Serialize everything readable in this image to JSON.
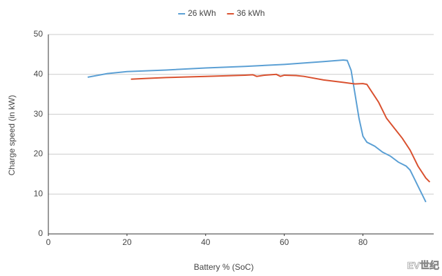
{
  "chart_data": {
    "type": "line",
    "x_label": "Battery % (SoC)",
    "y_label": "Charge speed (in kW)",
    "xlim": [
      0,
      98
    ],
    "xticks": [
      0,
      20,
      40,
      60,
      80
    ],
    "ylim": [
      0,
      50
    ],
    "yticks": [
      0,
      10,
      20,
      30,
      40,
      50
    ],
    "grid": true,
    "legend": "top",
    "series": [
      {
        "name": "26 kWh",
        "color": "#5a9fd4",
        "x": [
          10,
          15,
          20,
          30,
          40,
          50,
          60,
          70,
          75,
          76,
          77,
          78,
          79,
          80,
          81,
          83,
          85,
          87,
          89,
          91,
          92,
          93,
          94,
          95,
          96
        ],
        "values": [
          39.3,
          40.2,
          40.7,
          41.1,
          41.6,
          42.0,
          42.5,
          43.2,
          43.6,
          43.5,
          41,
          35,
          29,
          24.5,
          23,
          22,
          20.5,
          19.5,
          18,
          17,
          16,
          14,
          12,
          10,
          8
        ]
      },
      {
        "name": "36 kWh",
        "color": "#d9502e",
        "x": [
          21,
          25,
          30,
          40,
          50,
          52,
          53,
          55,
          58,
          59,
          60,
          63,
          65,
          70,
          75,
          78,
          80,
          81,
          82,
          83,
          84,
          86,
          88,
          90,
          92,
          94,
          96,
          97
        ],
        "values": [
          38.8,
          39,
          39.2,
          39.5,
          39.8,
          39.9,
          39.5,
          39.8,
          40,
          39.5,
          39.8,
          39.7,
          39.5,
          38.6,
          38.0,
          37.6,
          37.7,
          37.5,
          36,
          34.5,
          33,
          29,
          26.5,
          24,
          21,
          17,
          14,
          13
        ]
      }
    ],
    "watermark": "EV世纪"
  }
}
